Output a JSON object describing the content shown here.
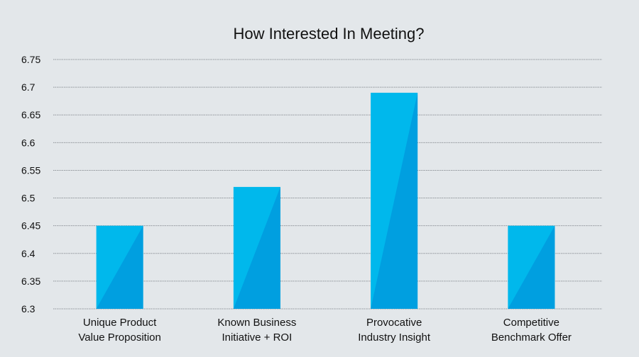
{
  "chart_data": {
    "type": "bar",
    "title": "How Interested In Meeting?",
    "xlabel": "",
    "ylabel": "",
    "ylim": [
      6.3,
      6.75
    ],
    "yticks": [
      "6.75",
      "6.7",
      "6.65",
      "6.6",
      "6.55",
      "6.5",
      "6.45",
      "6.4",
      "6.35",
      "6.3"
    ],
    "grid": true,
    "categories": [
      [
        "Unique Product",
        "Value Proposition"
      ],
      [
        "Known Business",
        "Initiative + ROI"
      ],
      [
        "Provocative",
        "Industry Insight"
      ],
      [
        "Competitive",
        "Benchmark Offer"
      ]
    ],
    "values": [
      6.45,
      6.52,
      6.69,
      6.45
    ],
    "colors": {
      "bar_light": "#00b8ec",
      "bar_dark": "#009fe0",
      "grid": "#8f9499",
      "background": "#e3e7ea"
    }
  }
}
